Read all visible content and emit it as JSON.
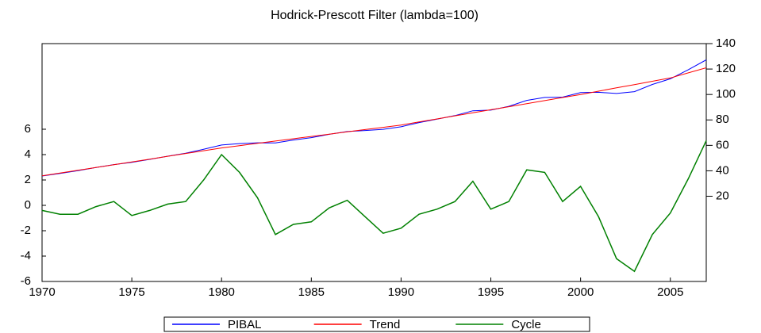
{
  "chart_data": {
    "type": "line",
    "title": "Hodrick-Prescott Filter (lambda=100)",
    "x": [
      1970,
      1971,
      1972,
      1973,
      1974,
      1975,
      1976,
      1977,
      1978,
      1979,
      1980,
      1981,
      1982,
      1983,
      1984,
      1985,
      1986,
      1987,
      1988,
      1989,
      1990,
      1991,
      1992,
      1993,
      1994,
      1995,
      1996,
      1997,
      1998,
      1999,
      2000,
      2001,
      2002,
      2003,
      2004,
      2005,
      2006,
      2007
    ],
    "xlim": [
      1970,
      2007
    ],
    "xticks": [
      1970,
      1975,
      1980,
      1985,
      1990,
      1995,
      2000,
      2005
    ],
    "ylim": [
      -6,
      12.75
    ],
    "yticks": [
      -6,
      -4,
      -2,
      0,
      2,
      4,
      6
    ],
    "y2lim": [
      -47,
      140
    ],
    "y2ticks": [
      20,
      40,
      60,
      80,
      100,
      120,
      140
    ],
    "legend": "bottom",
    "series": [
      {
        "name": "PIBAL",
        "color": "#0000ff",
        "axis": "y2",
        "values": [
          35.9,
          37.9,
          40.1,
          42.6,
          44.9,
          46.6,
          49.0,
          51.5,
          53.8,
          56.9,
          60.3,
          61.4,
          62.0,
          61.9,
          64.2,
          66.1,
          68.7,
          70.9,
          71.7,
          72.6,
          74.6,
          77.9,
          80.6,
          83.4,
          87.2,
          87.7,
          90.7,
          95.4,
          97.7,
          97.9,
          101.5,
          101.7,
          100.8,
          102.2,
          107.9,
          112.3,
          119.5,
          127.2
        ]
      },
      {
        "name": "Trend",
        "color": "#ff0000",
        "axis": "y2",
        "values": [
          36,
          38.2,
          40.4,
          42.6,
          44.8,
          47,
          49.2,
          51.4,
          53.6,
          55.8,
          58,
          59.8,
          61.6,
          63.4,
          65.2,
          67,
          68.8,
          70.6,
          72.4,
          74.2,
          76,
          78.4,
          80.8,
          83.2,
          85.6,
          88,
          90.4,
          92.8,
          95.2,
          97.6,
          100,
          102.6,
          105.2,
          107.8,
          110.4,
          113,
          117,
          121
        ]
      },
      {
        "name": "Cycle",
        "color": "#008000",
        "axis": "y",
        "values": [
          -0.4,
          -0.7,
          -0.7,
          -0.1,
          0.3,
          -0.8,
          -0.4,
          0.1,
          0.3,
          2.0,
          4.0,
          2.6,
          0.6,
          -2.3,
          -1.5,
          -1.3,
          -0.2,
          0.4,
          -0.9,
          -2.2,
          -1.8,
          -0.7,
          -0.3,
          0.3,
          1.9,
          -0.3,
          0.3,
          2.8,
          2.6,
          0.3,
          1.5,
          -0.9,
          -4.2,
          -5.2,
          -2.3,
          -0.6,
          2.1,
          5.1
        ]
      }
    ]
  }
}
